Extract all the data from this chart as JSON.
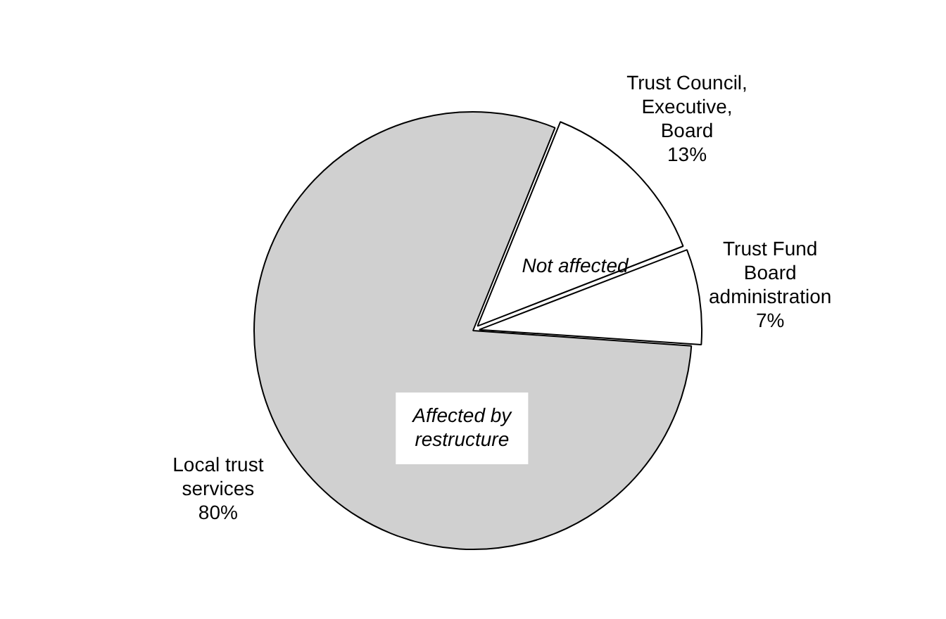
{
  "chart_data": {
    "type": "pie",
    "categories": [
      "Trust Council, Executive, Board",
      "Trust Fund Board administration",
      "Local trust services"
    ],
    "values": [
      13,
      7,
      80
    ],
    "value_labels": [
      "13%",
      "7%",
      "80%"
    ],
    "colors": [
      "#ffffff",
      "#ffffff",
      "#d0d0d0"
    ],
    "annotations": [
      "Not affected",
      "Affected by restructure"
    ],
    "legend": false
  }
}
